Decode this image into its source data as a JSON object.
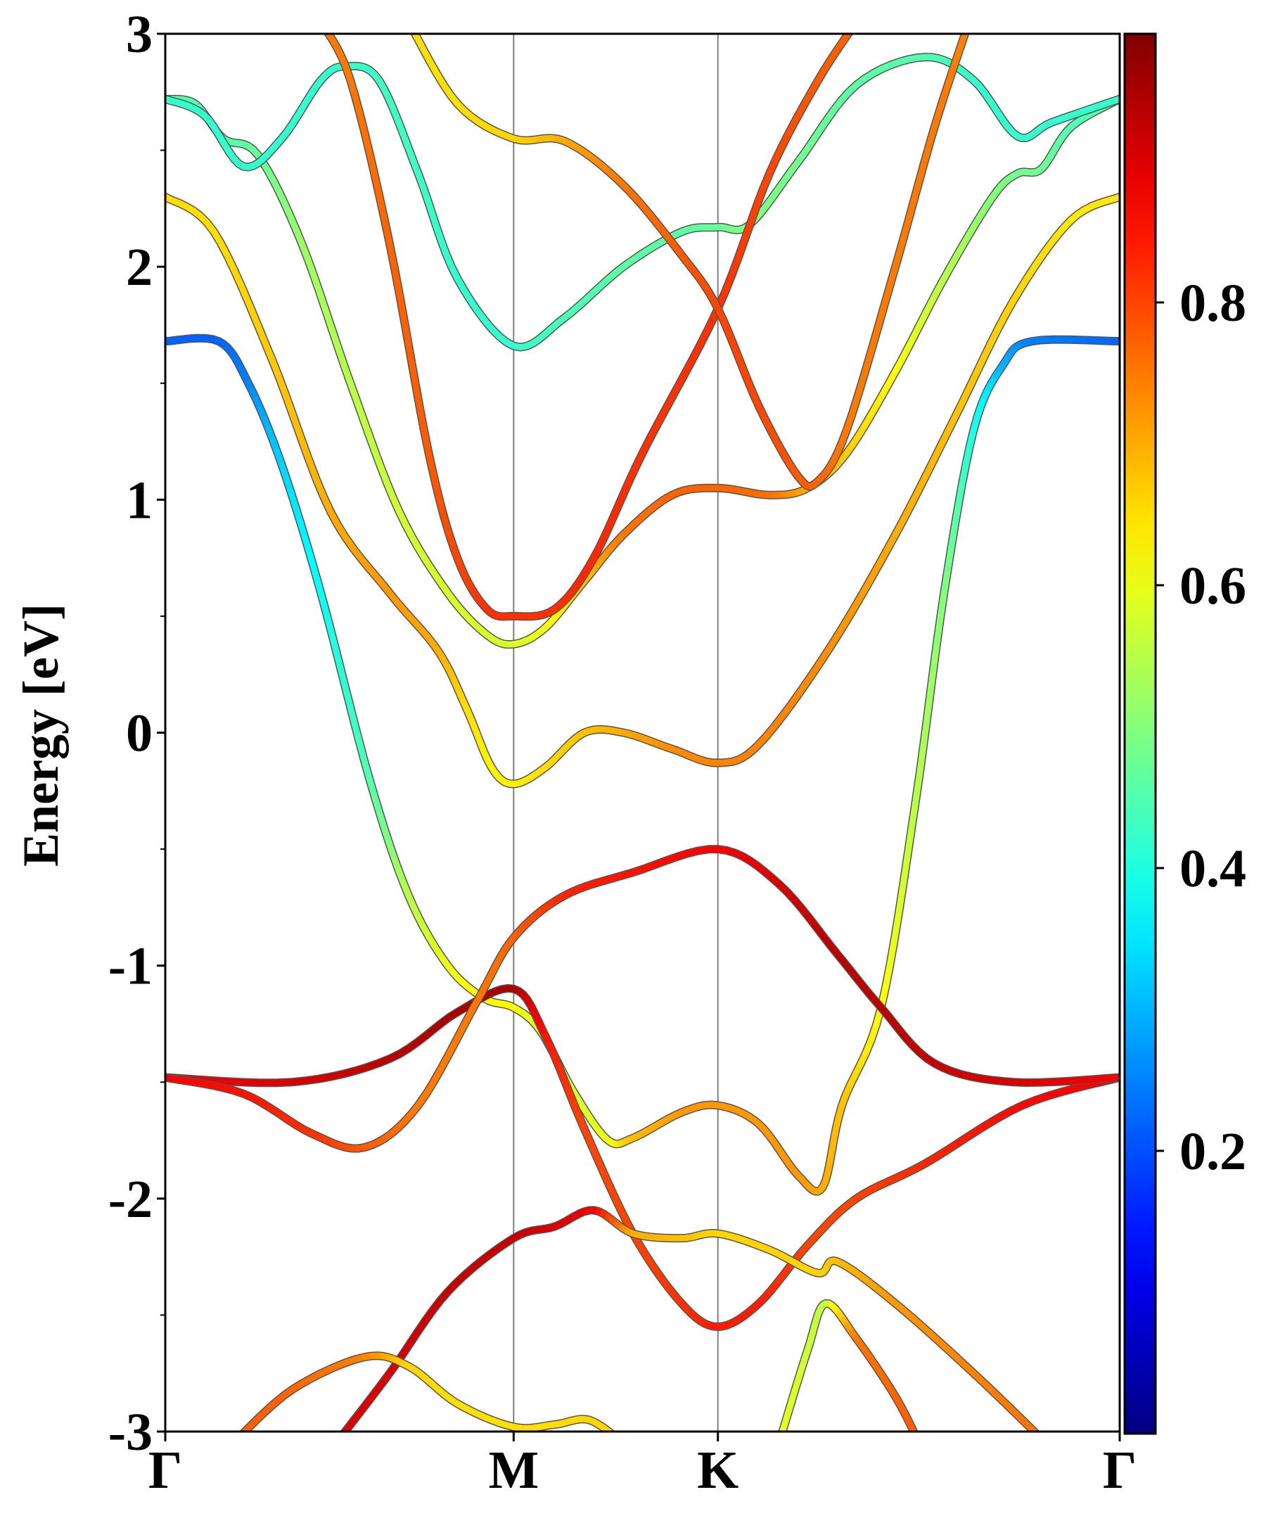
{
  "chart_data": {
    "type": "line",
    "title": "",
    "xlabel": "",
    "ylabel": "Energy [eV]",
    "ylim": [
      -3,
      3
    ],
    "yticks": [
      "-3",
      "-2",
      "-1",
      "0",
      "1",
      "2",
      "3"
    ],
    "ytick_values": [
      -3,
      -2,
      -1,
      0,
      1,
      2,
      3
    ],
    "high_symmetry_points": [
      {
        "label": "Γ",
        "k": 0.0
      },
      {
        "label": "M",
        "k": 0.365
      },
      {
        "label": "K",
        "k": 0.579
      },
      {
        "label": "Γ",
        "k": 1.0
      }
    ],
    "colorbar": {
      "colormap": "jet",
      "range": [
        0.0,
        0.99
      ],
      "ticks": [
        "0.2",
        "0.4",
        "0.6",
        "0.8"
      ],
      "tick_values": [
        0.2,
        0.4,
        0.6,
        0.8
      ]
    },
    "grid": false,
    "vertical_lines_color": "#808080",
    "bands": [
      [
        [
          0,
          1.68,
          0.22
        ],
        [
          0.056,
          1.68,
          0.22
        ],
        [
          0.087,
          1.5,
          0.25
        ],
        [
          0.122,
          1.15,
          0.33
        ],
        [
          0.163,
          0.6,
          0.38
        ],
        [
          0.214,
          -0.2,
          0.45
        ],
        [
          0.255,
          -0.7,
          0.55
        ],
        [
          0.296,
          -1.0,
          0.6
        ],
        [
          0.334,
          -1.14,
          0.62
        ],
        [
          0.365,
          -1.18,
          0.62
        ],
        [
          0.393,
          -1.28,
          0.58
        ],
        [
          0.429,
          -1.55,
          0.58
        ],
        [
          0.464,
          -1.75,
          0.6
        ],
        [
          0.49,
          -1.74,
          0.68
        ],
        [
          0.541,
          -1.63,
          0.72
        ],
        [
          0.579,
          -1.6,
          0.72
        ],
        [
          0.622,
          -1.68,
          0.72
        ],
        [
          0.663,
          -1.9,
          0.72
        ],
        [
          0.689,
          -1.95,
          0.7
        ],
        [
          0.709,
          -1.6,
          0.68
        ],
        [
          0.75,
          -1.18,
          0.62
        ],
        [
          0.786,
          -0.3,
          0.55
        ],
        [
          0.816,
          0.6,
          0.5
        ],
        [
          0.847,
          1.3,
          0.4
        ],
        [
          0.878,
          1.58,
          0.3
        ],
        [
          0.908,
          1.68,
          0.25
        ],
        [
          1.0,
          1.68,
          0.22
        ]
      ],
      [
        [
          0,
          2.3,
          0.65
        ],
        [
          0.051,
          2.15,
          0.65
        ],
        [
          0.112,
          1.6,
          0.67
        ],
        [
          0.173,
          0.95,
          0.7
        ],
        [
          0.235,
          0.6,
          0.72
        ],
        [
          0.286,
          0.35,
          0.7
        ],
        [
          0.316,
          0.1,
          0.65
        ],
        [
          0.342,
          -0.15,
          0.63
        ],
        [
          0.365,
          -0.22,
          0.63
        ],
        [
          0.398,
          -0.15,
          0.65
        ],
        [
          0.439,
          0.0,
          0.68
        ],
        [
          0.48,
          0.0,
          0.7
        ],
        [
          0.531,
          -0.07,
          0.73
        ],
        [
          0.579,
          -0.13,
          0.74
        ],
        [
          0.622,
          -0.05,
          0.74
        ],
        [
          0.694,
          0.35,
          0.73
        ],
        [
          0.765,
          0.85,
          0.7
        ],
        [
          0.827,
          1.35,
          0.68
        ],
        [
          0.888,
          1.85,
          0.66
        ],
        [
          0.949,
          2.2,
          0.64
        ],
        [
          1.0,
          2.3,
          0.64
        ]
      ],
      [
        [
          0,
          2.72,
          0.45
        ],
        [
          0.031,
          2.7,
          0.45
        ],
        [
          0.061,
          2.55,
          0.45
        ],
        [
          0.097,
          2.48,
          0.47
        ],
        [
          0.143,
          2.1,
          0.52
        ],
        [
          0.194,
          1.5,
          0.55
        ],
        [
          0.245,
          0.95,
          0.57
        ],
        [
          0.296,
          0.6,
          0.58
        ],
        [
          0.337,
          0.42,
          0.58
        ],
        [
          0.365,
          0.38,
          0.58
        ],
        [
          0.398,
          0.45,
          0.6
        ],
        [
          0.439,
          0.65,
          0.68
        ],
        [
          0.48,
          0.85,
          0.75
        ],
        [
          0.531,
          1.02,
          0.77
        ],
        [
          0.579,
          1.05,
          0.77
        ],
        [
          0.633,
          1.02,
          0.76
        ],
        [
          0.673,
          1.05,
          0.7
        ],
        [
          0.714,
          1.2,
          0.67
        ],
        [
          0.765,
          1.55,
          0.62
        ],
        [
          0.816,
          1.95,
          0.55
        ],
        [
          0.867,
          2.3,
          0.5
        ],
        [
          0.893,
          2.4,
          0.48
        ],
        [
          0.918,
          2.42,
          0.48
        ],
        [
          0.949,
          2.6,
          0.45
        ],
        [
          1.0,
          2.72,
          0.45
        ]
      ],
      [
        [
          0,
          2.72,
          0.42
        ],
        [
          0.041,
          2.65,
          0.42
        ],
        [
          0.082,
          2.43,
          0.42
        ],
        [
          0.122,
          2.55,
          0.42
        ],
        [
          0.163,
          2.8,
          0.42
        ],
        [
          0.189,
          2.86,
          0.42
        ],
        [
          0.224,
          2.8,
          0.43
        ],
        [
          0.265,
          2.4,
          0.43
        ],
        [
          0.306,
          1.95,
          0.42
        ],
        [
          0.365,
          1.66,
          0.42
        ],
        [
          0.418,
          1.78,
          0.44
        ],
        [
          0.48,
          2.0,
          0.46
        ],
        [
          0.541,
          2.15,
          0.46
        ],
        [
          0.579,
          2.17,
          0.47
        ],
        [
          0.612,
          2.18,
          0.5
        ],
        [
          0.663,
          2.45,
          0.48
        ],
        [
          0.724,
          2.78,
          0.46
        ],
        [
          0.796,
          2.9,
          0.45
        ],
        [
          0.847,
          2.8,
          0.42
        ],
        [
          0.893,
          2.56,
          0.42
        ],
        [
          0.929,
          2.62,
          0.42
        ],
        [
          1.0,
          2.72,
          0.42
        ]
      ],
      [
        [
          0.163,
          3.05,
          0.75
        ],
        [
          0.194,
          2.8,
          0.75
        ],
        [
          0.235,
          2.1,
          0.77
        ],
        [
          0.276,
          1.2,
          0.78
        ],
        [
          0.306,
          0.75,
          0.8
        ],
        [
          0.337,
          0.53,
          0.82
        ],
        [
          0.365,
          0.5,
          0.82
        ],
        [
          0.408,
          0.53,
          0.82
        ],
        [
          0.449,
          0.75,
          0.83
        ],
        [
          0.5,
          1.2,
          0.82
        ],
        [
          0.579,
          1.82,
          0.82
        ],
        [
          0.633,
          2.4,
          0.8
        ],
        [
          0.684,
          2.8,
          0.78
        ],
        [
          0.724,
          3.05,
          0.77
        ]
      ],
      [
        [
          0.255,
          3.05,
          0.65
        ],
        [
          0.306,
          2.7,
          0.65
        ],
        [
          0.365,
          2.55,
          0.66
        ],
        [
          0.418,
          2.54,
          0.7
        ],
        [
          0.48,
          2.35,
          0.75
        ],
        [
          0.541,
          2.05,
          0.78
        ],
        [
          0.579,
          1.82,
          0.8
        ],
        [
          0.622,
          1.4,
          0.8
        ],
        [
          0.663,
          1.1,
          0.78
        ],
        [
          0.684,
          1.08,
          0.77
        ],
        [
          0.714,
          1.3,
          0.75
        ],
        [
          0.765,
          2.0,
          0.75
        ],
        [
          0.806,
          2.6,
          0.75
        ],
        [
          0.842,
          3.05,
          0.74
        ]
      ],
      [
        [
          0,
          -1.48,
          0.87
        ],
        [
          0.133,
          -1.5,
          0.9
        ],
        [
          0.235,
          -1.4,
          0.93
        ],
        [
          0.306,
          -1.2,
          0.95
        ],
        [
          0.365,
          -1.1,
          0.95
        ],
        [
          0.398,
          -1.3,
          0.85
        ],
        [
          0.439,
          -1.7,
          0.8
        ],
        [
          0.49,
          -2.15,
          0.8
        ],
        [
          0.541,
          -2.45,
          0.82
        ],
        [
          0.579,
          -2.55,
          0.84
        ],
        [
          0.622,
          -2.45,
          0.84
        ],
        [
          0.673,
          -2.2,
          0.8
        ],
        [
          0.724,
          -2.0,
          0.8
        ],
        [
          0.796,
          -1.85,
          0.83
        ],
        [
          0.898,
          -1.6,
          0.86
        ],
        [
          1.0,
          -1.48,
          0.87
        ]
      ],
      [
        [
          0,
          -1.48,
          0.87
        ],
        [
          0.082,
          -1.55,
          0.85
        ],
        [
          0.153,
          -1.72,
          0.82
        ],
        [
          0.209,
          -1.78,
          0.78
        ],
        [
          0.265,
          -1.6,
          0.75
        ],
        [
          0.327,
          -1.15,
          0.75
        ],
        [
          0.365,
          -0.88,
          0.77
        ],
        [
          0.418,
          -0.7,
          0.83
        ],
        [
          0.49,
          -0.6,
          0.85
        ],
        [
          0.579,
          -0.5,
          0.87
        ],
        [
          0.643,
          -0.65,
          0.9
        ],
        [
          0.704,
          -0.95,
          0.93
        ],
        [
          0.75,
          -1.18,
          0.93
        ],
        [
          0.806,
          -1.42,
          0.92
        ],
        [
          0.888,
          -1.5,
          0.9
        ],
        [
          1.0,
          -1.48,
          0.87
        ]
      ],
      [
        [
          0.179,
          -3.05,
          0.9
        ],
        [
          0.235,
          -2.75,
          0.9
        ],
        [
          0.296,
          -2.4,
          0.92
        ],
        [
          0.365,
          -2.17,
          0.92
        ],
        [
          0.408,
          -2.12,
          0.9
        ],
        [
          0.449,
          -2.05,
          0.88
        ],
        [
          0.49,
          -2.15,
          0.7
        ],
        [
          0.541,
          -2.17,
          0.68
        ],
        [
          0.579,
          -2.15,
          0.66
        ],
        [
          0.633,
          -2.22,
          0.66
        ],
        [
          0.684,
          -2.32,
          0.66
        ],
        [
          0.704,
          -2.27,
          0.68
        ],
        [
          0.765,
          -2.45,
          0.72
        ],
        [
          0.847,
          -2.75,
          0.74
        ],
        [
          0.923,
          -3.05,
          0.76
        ]
      ],
      [
        [
          0.071,
          -3.05,
          0.78
        ],
        [
          0.133,
          -2.82,
          0.77
        ],
        [
          0.209,
          -2.68,
          0.74
        ],
        [
          0.255,
          -2.72,
          0.66
        ],
        [
          0.306,
          -2.88,
          0.65
        ],
        [
          0.365,
          -2.98,
          0.65
        ],
        [
          0.408,
          -2.97,
          0.65
        ],
        [
          0.444,
          -2.95,
          0.66
        ],
        [
          0.48,
          -3.05,
          0.66
        ]
      ],
      [
        [
          0.643,
          -3.05,
          0.6
        ],
        [
          0.673,
          -2.65,
          0.57
        ],
        [
          0.692,
          -2.45,
          0.55
        ],
        [
          0.724,
          -2.6,
          0.75
        ],
        [
          0.765,
          -2.85,
          0.77
        ],
        [
          0.79,
          -3.05,
          0.78
        ]
      ]
    ]
  }
}
